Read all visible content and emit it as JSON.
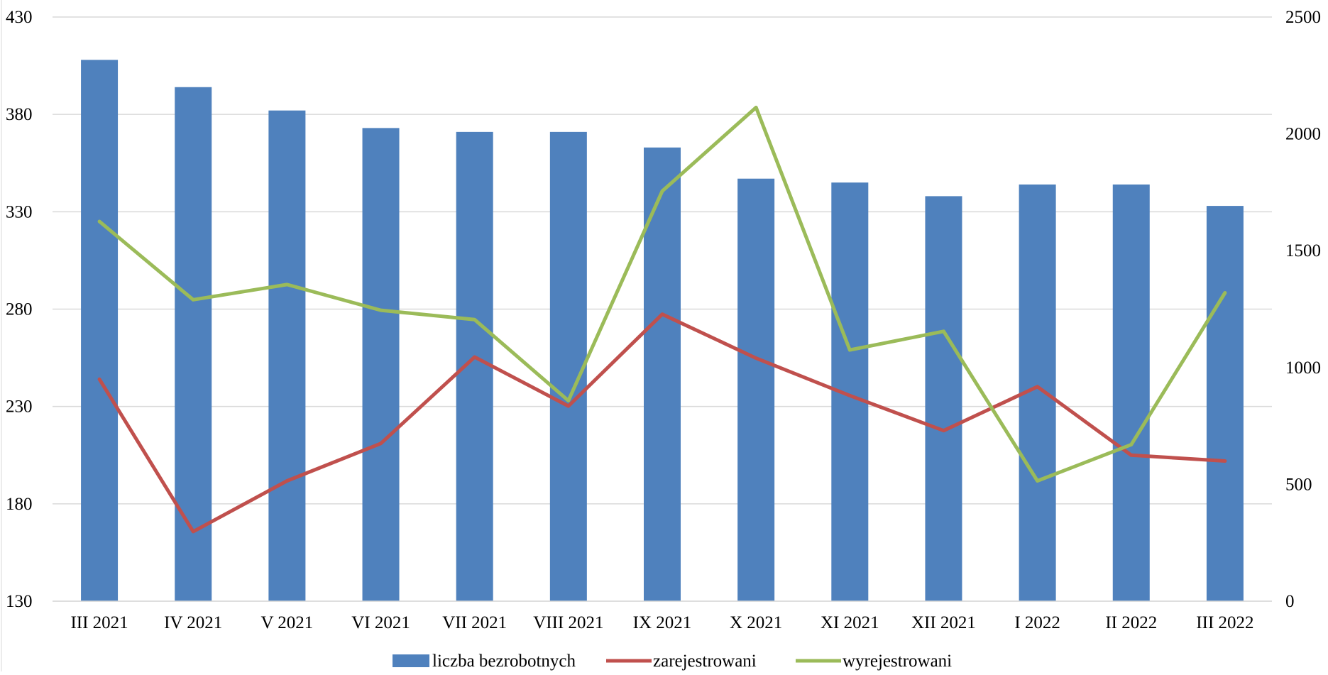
{
  "chart_data": {
    "type": "bar",
    "title": "",
    "xlabel": "",
    "ylabel": "",
    "categories": [
      "III 2021",
      "IV 2021",
      "V 2021",
      "VI 2021",
      "VII 2021",
      "VIII 2021",
      "IX 2021",
      "X 2021",
      "XI 2021",
      "XII 2021",
      "I 2022",
      "II 2022",
      "III 2022"
    ],
    "left_axis": {
      "min": 130,
      "max": 430,
      "ticks": [
        130,
        180,
        230,
        280,
        330,
        380,
        430
      ],
      "tick_labels": [
        "130",
        "180",
        "230",
        "280",
        "330",
        "380",
        "430"
      ]
    },
    "right_axis": {
      "min": 0,
      "max": 2500,
      "ticks": [
        0,
        500,
        1000,
        1500,
        2000,
        2500
      ],
      "tick_labels": [
        "0",
        "500",
        "1000",
        "1500",
        "2000",
        "2500"
      ]
    },
    "grid": true,
    "legend_position": "bottom",
    "series": [
      {
        "name": "liczba bezrobotnych",
        "type": "bar",
        "axis": "left",
        "color": "#4f81bd",
        "values": [
          408,
          394,
          382,
          373,
          371,
          371,
          363,
          347,
          345,
          338,
          344,
          344,
          333
        ]
      },
      {
        "name": "zarejestrowani",
        "type": "line",
        "axis": "right",
        "color": "#c0504d",
        "values": [
          950,
          298,
          515,
          675,
          1045,
          835,
          1228,
          1040,
          880,
          730,
          918,
          625,
          600
        ]
      },
      {
        "name": "wyrejestrowani",
        "type": "line",
        "axis": "right",
        "color": "#9bbb59",
        "values": [
          1625,
          1290,
          1355,
          1245,
          1205,
          858,
          1755,
          2113,
          1075,
          1155,
          515,
          670,
          1320
        ]
      }
    ]
  }
}
